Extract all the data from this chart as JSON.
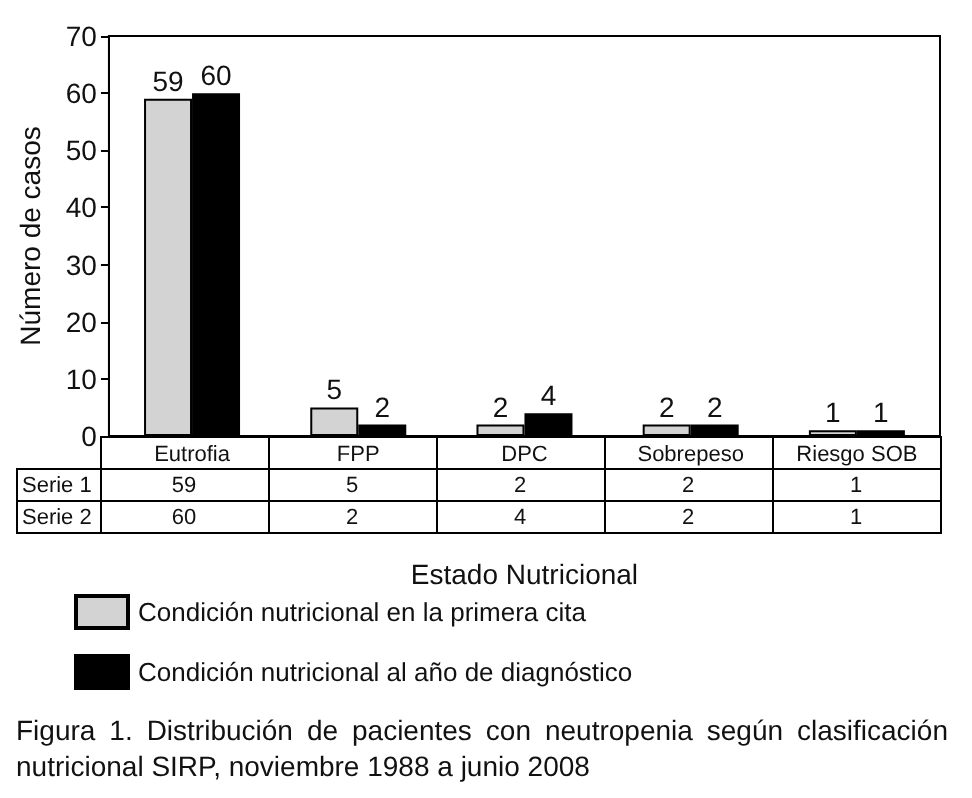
{
  "chart_data": {
    "type": "bar",
    "xlabel": "Estado Nutricional",
    "ylabel": "Número de casos",
    "categories": [
      "Eutrofia",
      "FPP",
      "DPC",
      "Sobrepeso",
      "Riesgo SOB"
    ],
    "series": [
      {
        "name": "Condición nutricional en la primera cita",
        "color": "#d3d3d3",
        "values": [
          59,
          5,
          2,
          2,
          1
        ]
      },
      {
        "name": "Condición nutricional al año de diagnóstico",
        "color": "#000000",
        "values": [
          60,
          2,
          4,
          2,
          1
        ]
      }
    ],
    "ylim": [
      0,
      70
    ],
    "yticks": [
      0,
      10,
      20,
      30,
      40,
      50,
      60,
      70
    ],
    "grid": false,
    "legend": "bottom",
    "data_labels": true,
    "annotations": [
      "Serie 1",
      "59",
      "5",
      "2",
      "2",
      "1",
      "Serie 2",
      "60",
      "2",
      "4",
      "2",
      "1",
      "Figura 1. Distribución de pacientes con neutropenia según clasificación nutricional SIRP, noviembre 1988 a junio 2008"
    ]
  }
}
